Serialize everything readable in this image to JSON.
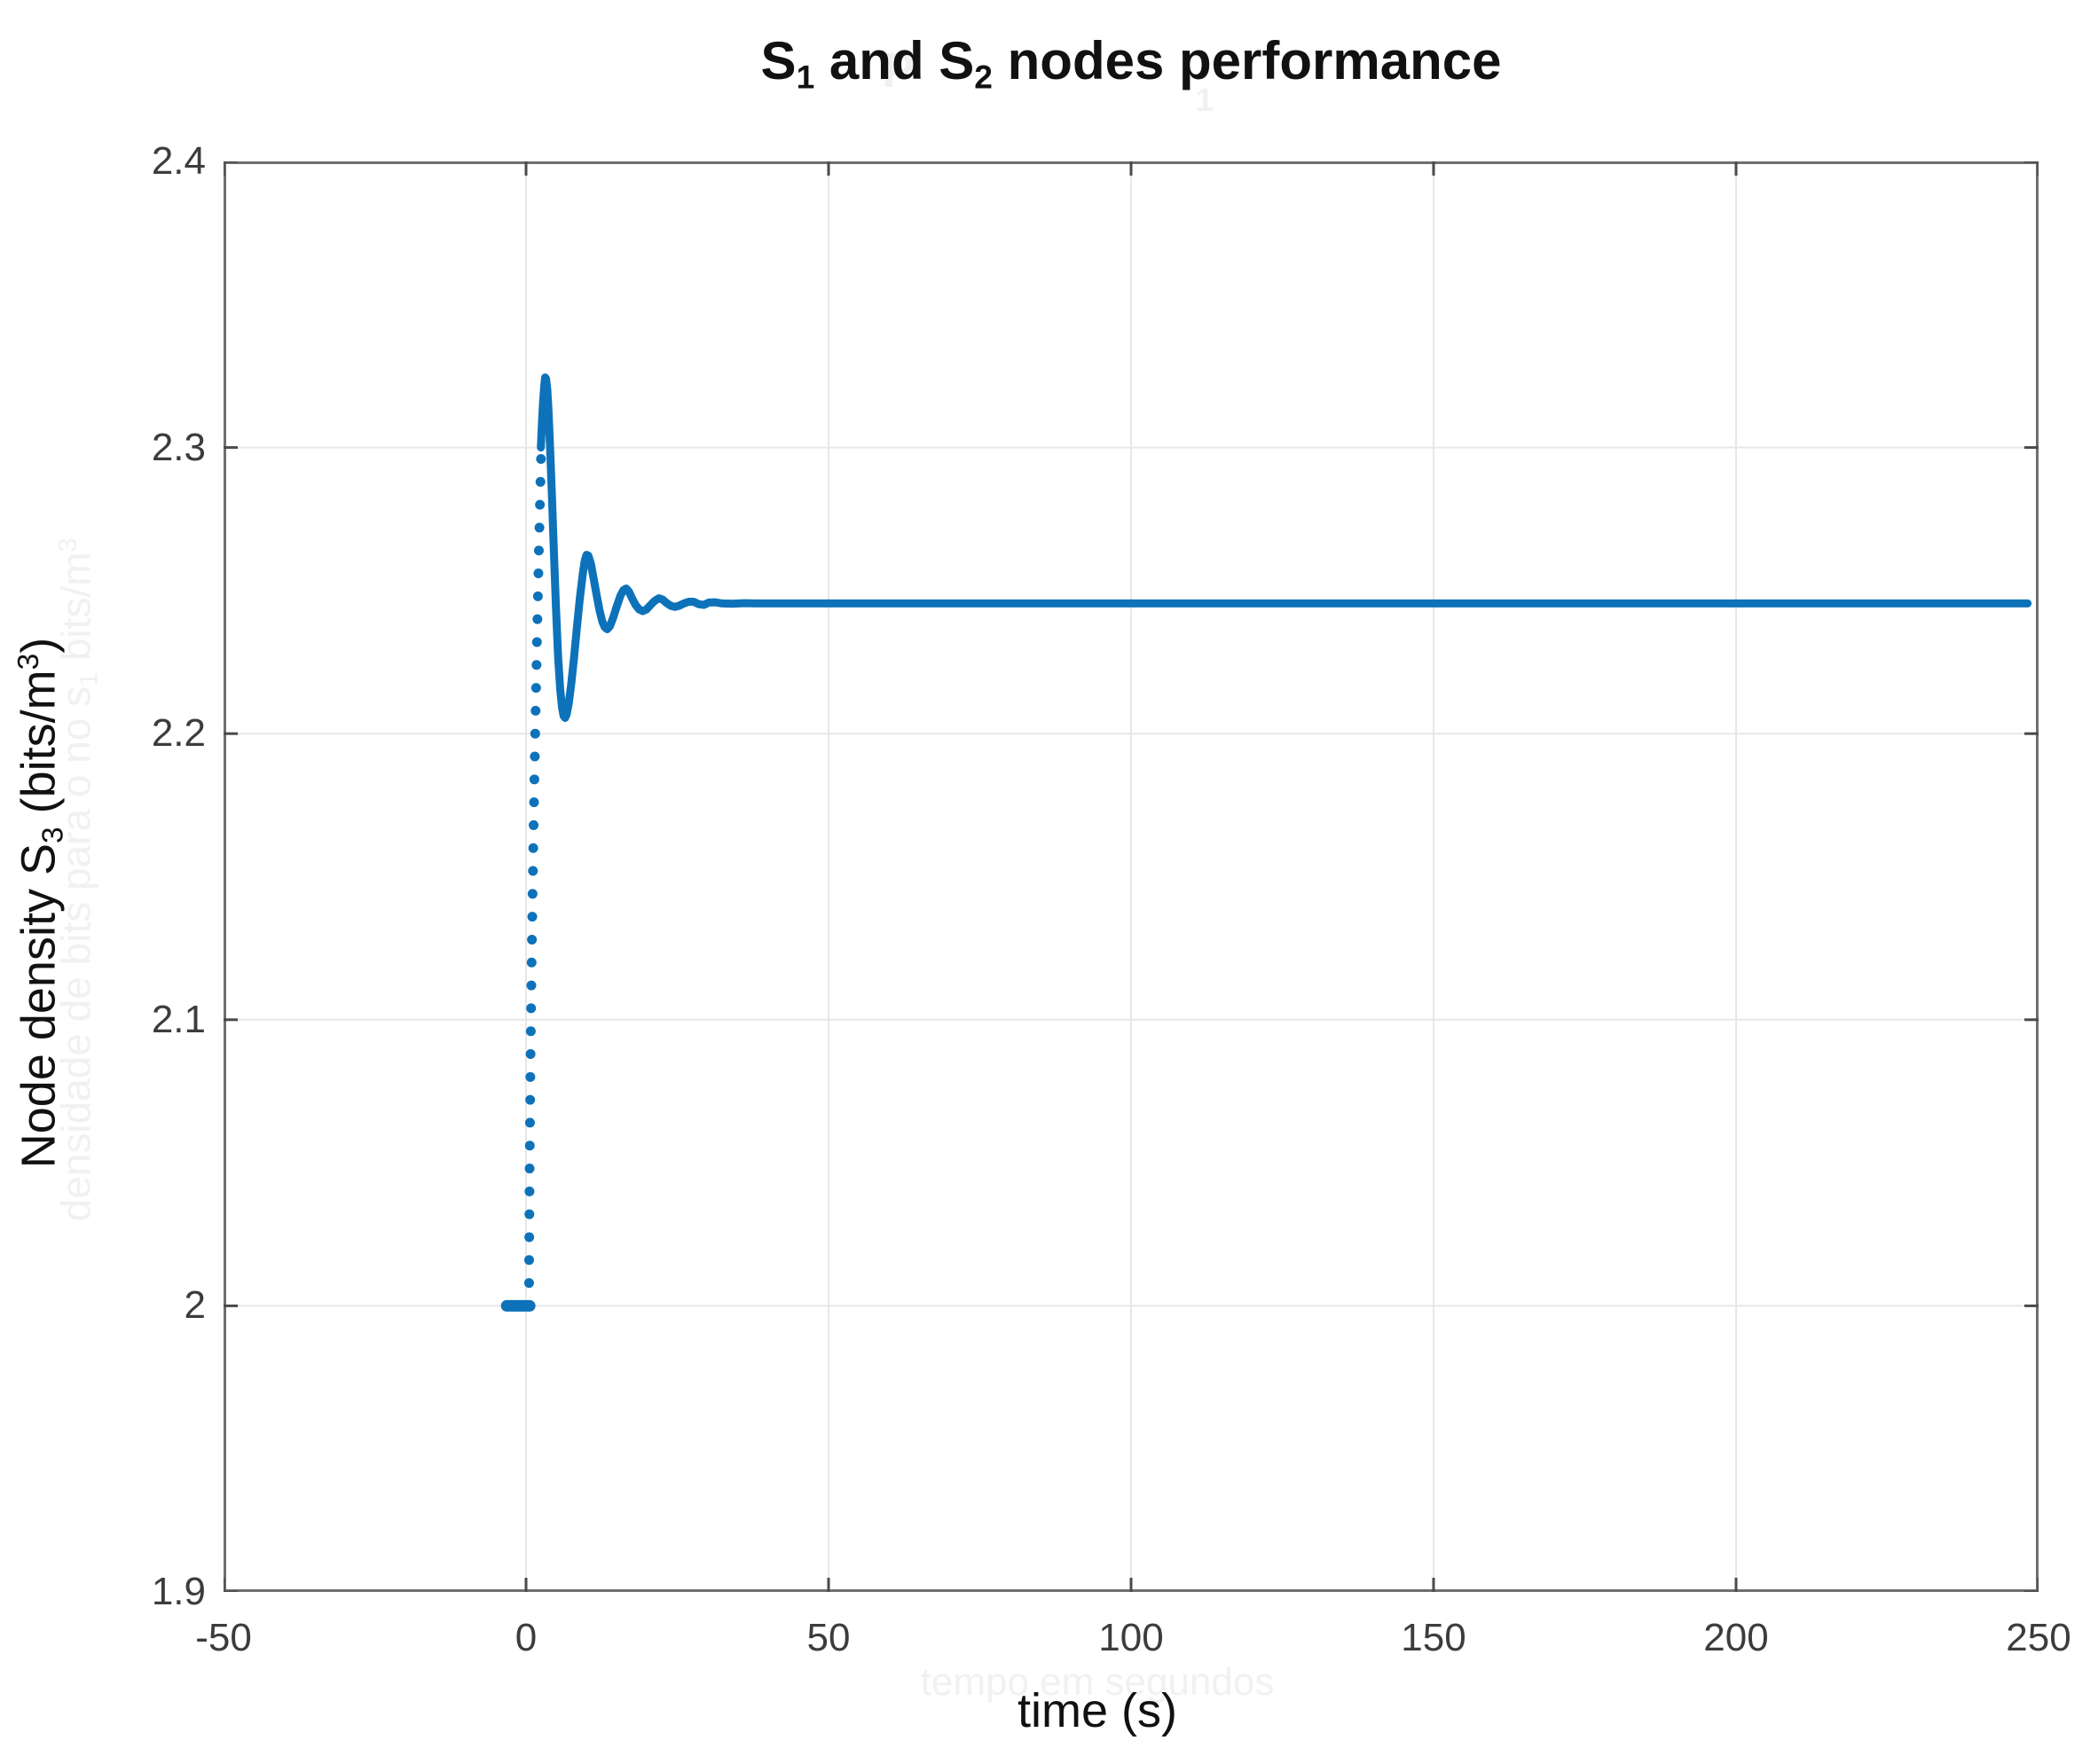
{
  "title": {
    "pre": "S",
    "sub1": "1",
    "mid": " and S",
    "sub2": "2",
    "post": " nodes performance",
    "color": "#111111"
  },
  "ghosts": {
    "color": "#f1f1f1",
    "title_fragment_p": "P",
    "title_fragment_1": "1",
    "xlabel": "tempo em segundos",
    "ylabel": {
      "pre": "densidade de bits para o no s",
      "sub": "1",
      "mid": " bits/m",
      "sup": "3"
    }
  },
  "axes": {
    "xlabel": {
      "text": "time (s)"
    },
    "ylabel": {
      "pre": "Node density S",
      "sub": "3",
      "mid": " (bits/m",
      "sup": "3",
      "post": ")"
    },
    "tick_label_color": "#3c3c3c",
    "box_color": "#6f6f6f",
    "grid_color": "#e7e7e7",
    "tick_mark_color": "#4a4a4a"
  },
  "chart_data": {
    "type": "line",
    "title": "S1 and S2 nodes performance",
    "xlabel": "time (s)",
    "ylabel": "Node density S3 (bits/m3)",
    "xlim": [
      -50,
      250
    ],
    "ylim": [
      1.9,
      2.4
    ],
    "grid": true,
    "legend_position": "none",
    "xticks": {
      "values": [
        -50,
        0,
        50,
        100,
        150,
        200,
        250
      ],
      "labels": [
        "-50",
        "0",
        "50",
        "100",
        "150",
        "200",
        "250"
      ]
    },
    "yticks": {
      "values": [
        1.9,
        2.0,
        2.1,
        2.2,
        2.3,
        2.4
      ],
      "labels": [
        "1.9",
        "2",
        "2.1",
        "2.2",
        "2.3",
        "2.4"
      ]
    },
    "series": [
      {
        "name": "node density S3",
        "color": "#0d72b9",
        "initial_value": 2.0,
        "steady_state": 2.2455,
        "overshoot_peak": {
          "t": 3.15,
          "y": 2.3245
        },
        "first_trough": {
          "t": 6.45,
          "y": 2.2055
        },
        "end_t": 248.2,
        "flat_segment": [
          [
            -3.2,
            2.0
          ],
          [
            0.6,
            2.0
          ]
        ],
        "rise_dots": [
          [
            0.5,
            2.008
          ],
          [
            0.51,
            2.016
          ],
          [
            0.53,
            2.024
          ],
          [
            0.55,
            2.032
          ],
          [
            0.57,
            2.04
          ],
          [
            0.59,
            2.048
          ],
          [
            0.62,
            2.056
          ],
          [
            0.65,
            2.064
          ],
          [
            0.68,
            2.072
          ],
          [
            0.71,
            2.08
          ],
          [
            0.75,
            2.088
          ],
          [
            0.79,
            2.096
          ],
          [
            0.83,
            2.104
          ],
          [
            0.88,
            2.112
          ],
          [
            0.92,
            2.12
          ],
          [
            0.97,
            2.128
          ],
          [
            1.03,
            2.136
          ],
          [
            1.08,
            2.144
          ],
          [
            1.14,
            2.152
          ],
          [
            1.19,
            2.16
          ],
          [
            1.25,
            2.168
          ],
          [
            1.32,
            2.176
          ],
          [
            1.38,
            2.184
          ],
          [
            1.45,
            2.192
          ],
          [
            1.51,
            2.2
          ],
          [
            1.58,
            2.208
          ],
          [
            1.66,
            2.216
          ],
          [
            1.73,
            2.224
          ],
          [
            1.8,
            2.232
          ],
          [
            1.88,
            2.24
          ],
          [
            1.96,
            2.248
          ],
          [
            2.04,
            2.256
          ],
          [
            2.12,
            2.264
          ],
          [
            2.21,
            2.272
          ],
          [
            2.29,
            2.28
          ],
          [
            2.38,
            2.288
          ],
          [
            2.47,
            2.296
          ]
        ],
        "points": [
          [
            2.45,
            2.3
          ],
          [
            2.62,
            2.3085
          ],
          [
            2.8,
            2.3155
          ],
          [
            3.0,
            2.3215
          ],
          [
            3.15,
            2.3245
          ],
          [
            3.32,
            2.324
          ],
          [
            3.5,
            2.3205
          ],
          [
            3.7,
            2.3135
          ],
          [
            3.95,
            2.3015
          ],
          [
            4.25,
            2.2845
          ],
          [
            4.6,
            2.2635
          ],
          [
            4.95,
            2.2435
          ],
          [
            5.3,
            2.227
          ],
          [
            5.65,
            2.2155
          ],
          [
            5.95,
            2.209
          ],
          [
            6.2,
            2.2062
          ],
          [
            6.45,
            2.2055
          ],
          [
            6.72,
            2.2068
          ],
          [
            7.05,
            2.2105
          ],
          [
            7.45,
            2.217
          ],
          [
            7.9,
            2.226
          ],
          [
            8.4,
            2.237
          ],
          [
            8.9,
            2.2475
          ],
          [
            9.35,
            2.2555
          ],
          [
            9.7,
            2.2605
          ],
          [
            10.0,
            2.2625
          ],
          [
            10.3,
            2.2622
          ],
          [
            10.7,
            2.2595
          ],
          [
            11.15,
            2.2545
          ],
          [
            11.65,
            2.2485
          ],
          [
            12.15,
            2.243
          ],
          [
            12.6,
            2.2392
          ],
          [
            13.0,
            2.2372
          ],
          [
            13.4,
            2.2365
          ],
          [
            13.85,
            2.2375
          ],
          [
            14.4,
            2.2405
          ],
          [
            15.0,
            2.2445
          ],
          [
            15.6,
            2.2482
          ],
          [
            16.1,
            2.2502
          ],
          [
            16.55,
            2.2507
          ],
          [
            17.0,
            2.2497
          ],
          [
            17.55,
            2.2472
          ],
          [
            18.1,
            2.245
          ],
          [
            18.7,
            2.2434
          ],
          [
            19.3,
            2.2428
          ],
          [
            19.9,
            2.2434
          ],
          [
            20.6,
            2.245
          ],
          [
            21.3,
            2.2465
          ],
          [
            21.95,
            2.2473
          ],
          [
            22.55,
            2.2469
          ],
          [
            23.2,
            2.2457
          ],
          [
            23.9,
            2.2447
          ],
          [
            24.6,
            2.2443
          ],
          [
            25.3,
            2.2447
          ],
          [
            26.1,
            2.2455
          ],
          [
            26.9,
            2.2461
          ],
          [
            27.7,
            2.2461
          ],
          [
            28.6,
            2.2452
          ],
          [
            29.4,
            2.245
          ],
          [
            30.2,
            2.2458
          ],
          [
            31.2,
            2.2459
          ],
          [
            32.4,
            2.2455
          ],
          [
            34.0,
            2.2454
          ],
          [
            36.0,
            2.2456
          ],
          [
            38.0,
            2.2455
          ],
          [
            248.2,
            2.2455
          ]
        ]
      }
    ]
  }
}
